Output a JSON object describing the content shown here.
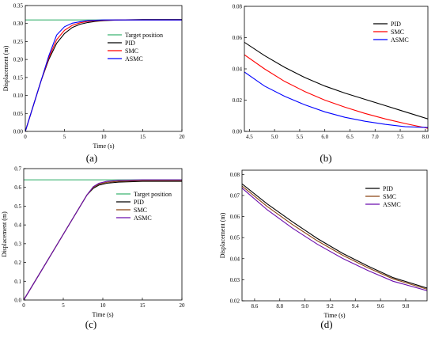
{
  "chart_data": [
    {
      "type": "line",
      "panel_label": "(a)",
      "xlabel": "Time (s)",
      "ylabel": "Displacement (m)",
      "xlim": [
        0,
        20
      ],
      "ylim": [
        0,
        0.35
      ],
      "xticks": [
        0,
        5,
        10,
        15,
        20
      ],
      "xticklabels": [
        "0",
        "5",
        "10",
        "15",
        "20"
      ],
      "yticks": [
        0,
        0.05,
        0.1,
        0.15,
        0.2,
        0.25,
        0.3,
        0.35
      ],
      "yticklabels": [
        "0.00",
        "0.05",
        "0.10",
        "0.15",
        "0.20",
        "0.25",
        "0.30",
        "0.35"
      ],
      "legend_position": "center-right",
      "series": [
        {
          "name": "Target position",
          "color": "#3cb371",
          "x": [
            0,
            20
          ],
          "y": [
            0.31,
            0.31
          ]
        },
        {
          "name": "PID",
          "color": "#000000",
          "x": [
            0,
            1,
            2,
            3,
            4,
            5,
            6,
            7,
            8,
            9,
            10,
            12,
            15,
            20
          ],
          "y": [
            0,
            0.07,
            0.14,
            0.2,
            0.245,
            0.272,
            0.289,
            0.298,
            0.303,
            0.306,
            0.308,
            0.31,
            0.311,
            0.311
          ]
        },
        {
          "name": "SMC",
          "color": "#ff0000",
          "x": [
            0,
            1,
            2,
            3,
            4,
            5,
            6,
            7,
            8,
            9,
            10,
            12,
            15,
            20
          ],
          "y": [
            0,
            0.07,
            0.14,
            0.205,
            0.255,
            0.281,
            0.295,
            0.302,
            0.306,
            0.308,
            0.309,
            0.31,
            0.31,
            0.31
          ]
        },
        {
          "name": "ASMC",
          "color": "#0000ff",
          "x": [
            0,
            1,
            2,
            3,
            4,
            5,
            6,
            7,
            8,
            9,
            10,
            12,
            15,
            20
          ],
          "y": [
            0,
            0.07,
            0.14,
            0.21,
            0.268,
            0.291,
            0.301,
            0.305,
            0.308,
            0.309,
            0.31,
            0.31,
            0.31,
            0.31
          ]
        }
      ]
    },
    {
      "type": "line",
      "panel_label": "(b)",
      "xlabel": "",
      "ylabel": "",
      "xlim": [
        4.4,
        8.05
      ],
      "ylim": [
        0,
        0.08
      ],
      "xticks": [
        4.5,
        5.0,
        5.5,
        6.0,
        6.5,
        7.0,
        7.5,
        8.0
      ],
      "xticklabels": [
        "4.5",
        "5.0",
        "5.5",
        "6.0",
        "6.5",
        "7.0",
        "7.5",
        "8.0"
      ],
      "yticks": [
        0,
        0.02,
        0.04,
        0.06,
        0.08
      ],
      "yticklabels": [
        "0.00",
        "0.02",
        "0.04",
        "0.06",
        "0.08"
      ],
      "legend_position": "top-right",
      "series": [
        {
          "name": "PID",
          "color": "#000000",
          "x": [
            4.4,
            4.8,
            5.2,
            5.6,
            6.0,
            6.4,
            6.8,
            7.2,
            7.6,
            8.05
          ],
          "y": [
            0.057,
            0.0485,
            0.041,
            0.0345,
            0.029,
            0.0245,
            0.0205,
            0.0165,
            0.0125,
            0.008
          ]
        },
        {
          "name": "SMC",
          "color": "#ff0000",
          "x": [
            4.4,
            4.8,
            5.2,
            5.6,
            6.0,
            6.4,
            6.8,
            7.2,
            7.6,
            8.05
          ],
          "y": [
            0.049,
            0.04,
            0.032,
            0.0255,
            0.02,
            0.0155,
            0.0115,
            0.008,
            0.005,
            0.002
          ]
        },
        {
          "name": "ASMC",
          "color": "#0000ff",
          "x": [
            4.4,
            4.8,
            5.2,
            5.6,
            6.0,
            6.4,
            6.8,
            7.2,
            7.6,
            8.05
          ],
          "y": [
            0.038,
            0.029,
            0.0225,
            0.017,
            0.0125,
            0.009,
            0.0065,
            0.0045,
            0.003,
            0.0025
          ]
        }
      ]
    },
    {
      "type": "line",
      "panel_label": "(c)",
      "xlabel": "Time (s)",
      "ylabel": "Displacement (m)",
      "xlim": [
        0,
        20
      ],
      "ylim": [
        0,
        0.7
      ],
      "xticks": [
        0,
        5,
        10,
        15,
        20
      ],
      "xticklabels": [
        "0",
        "5",
        "10",
        "15",
        "20"
      ],
      "yticks": [
        0,
        0.1,
        0.2,
        0.3,
        0.4,
        0.5,
        0.6,
        0.7
      ],
      "yticklabels": [
        "0.0",
        "0.1",
        "0.2",
        "0.3",
        "0.4",
        "0.5",
        "0.6",
        "0.7"
      ],
      "legend_position": "center-right",
      "series": [
        {
          "name": "Target position",
          "color": "#3cb371",
          "x": [
            0,
            20
          ],
          "y": [
            0.64,
            0.64
          ]
        },
        {
          "name": "PID",
          "color": "#000000",
          "x": [
            0,
            2,
            4,
            6,
            8,
            8.8,
            9.5,
            10.5,
            12,
            15,
            20
          ],
          "y": [
            0,
            0.14,
            0.28,
            0.42,
            0.56,
            0.595,
            0.612,
            0.622,
            0.628,
            0.632,
            0.632
          ]
        },
        {
          "name": "SMC",
          "color": "#8b4513",
          "x": [
            0,
            2,
            4,
            6,
            8,
            8.8,
            9.5,
            10.5,
            12,
            15,
            20
          ],
          "y": [
            0,
            0.14,
            0.28,
            0.42,
            0.56,
            0.6,
            0.617,
            0.627,
            0.632,
            0.636,
            0.636
          ]
        },
        {
          "name": "ASMC",
          "color": "#6a0dad",
          "x": [
            0,
            2,
            4,
            6,
            8,
            8.8,
            9.5,
            10.5,
            12,
            15,
            20
          ],
          "y": [
            0,
            0.14,
            0.28,
            0.42,
            0.56,
            0.604,
            0.622,
            0.632,
            0.637,
            0.64,
            0.64
          ]
        }
      ]
    },
    {
      "type": "line",
      "panel_label": "(d)",
      "xlabel": "Time (s)",
      "ylabel": "Displacement (m)",
      "xlim": [
        8.5,
        9.97
      ],
      "ylim": [
        0.02,
        0.082
      ],
      "xticks": [
        8.6,
        8.8,
        9.0,
        9.2,
        9.4,
        9.6,
        9.8
      ],
      "xticklabels": [
        "8.6",
        "8.8",
        "9.0",
        "9.2",
        "9.4",
        "9.6",
        "9.8"
      ],
      "yticks": [
        0.02,
        0.03,
        0.04,
        0.05,
        0.06,
        0.07,
        0.08
      ],
      "yticklabels": [
        "0.02",
        "0.03",
        "0.04",
        "0.05",
        "0.06",
        "0.07",
        "0.08"
      ],
      "legend_position": "top-right",
      "series": [
        {
          "name": "PID",
          "color": "#000000",
          "x": [
            8.5,
            8.7,
            8.9,
            9.1,
            9.3,
            9.5,
            9.7,
            9.97
          ],
          "y": [
            0.0755,
            0.066,
            0.0575,
            0.0495,
            0.0425,
            0.0365,
            0.031,
            0.026
          ]
        },
        {
          "name": "SMC",
          "color": "#8b4513",
          "x": [
            8.5,
            8.7,
            8.9,
            9.1,
            9.3,
            9.5,
            9.7,
            9.97
          ],
          "y": [
            0.0745,
            0.0648,
            0.0562,
            0.0484,
            0.0416,
            0.0357,
            0.0304,
            0.0255
          ]
        },
        {
          "name": "ASMC",
          "color": "#6a0dad",
          "x": [
            8.5,
            8.7,
            8.9,
            9.1,
            9.3,
            9.5,
            9.7,
            9.97
          ],
          "y": [
            0.0735,
            0.0632,
            0.0545,
            0.0468,
            0.0401,
            0.0344,
            0.0293,
            0.0248
          ]
        }
      ]
    }
  ]
}
